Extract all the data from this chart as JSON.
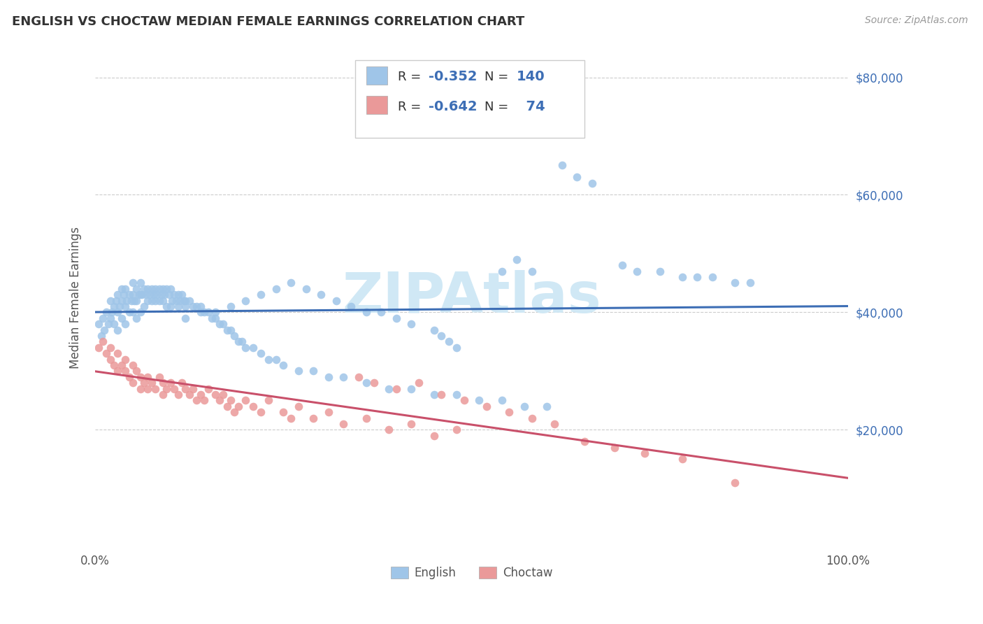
{
  "title": "ENGLISH VS CHOCTAW MEDIAN FEMALE EARNINGS CORRELATION CHART",
  "source": "Source: ZipAtlas.com",
  "ylabel": "Median Female Earnings",
  "xlim": [
    0,
    1
  ],
  "ylim": [
    0,
    85000
  ],
  "english_color": "#9fc5e8",
  "choctaw_color": "#ea9999",
  "english_line_color": "#3d6eb5",
  "choctaw_line_color": "#c9506a",
  "R_english": -0.352,
  "N_english": 140,
  "R_choctaw": -0.642,
  "N_choctaw": 74,
  "background_color": "#ffffff",
  "watermark_text": "ZIPAtlas",
  "watermark_color": "#d0e8f5",
  "english_x": [
    0.005,
    0.008,
    0.01,
    0.012,
    0.015,
    0.018,
    0.02,
    0.02,
    0.022,
    0.025,
    0.025,
    0.028,
    0.03,
    0.03,
    0.03,
    0.032,
    0.035,
    0.035,
    0.035,
    0.038,
    0.04,
    0.04,
    0.04,
    0.042,
    0.045,
    0.045,
    0.048,
    0.05,
    0.05,
    0.05,
    0.052,
    0.055,
    0.055,
    0.055,
    0.058,
    0.06,
    0.06,
    0.06,
    0.062,
    0.065,
    0.065,
    0.068,
    0.07,
    0.07,
    0.072,
    0.075,
    0.075,
    0.078,
    0.08,
    0.08,
    0.082,
    0.085,
    0.085,
    0.088,
    0.09,
    0.09,
    0.092,
    0.095,
    0.095,
    0.098,
    0.1,
    0.1,
    0.102,
    0.105,
    0.108,
    0.11,
    0.11,
    0.112,
    0.115,
    0.118,
    0.12,
    0.12,
    0.125,
    0.13,
    0.135,
    0.14,
    0.145,
    0.15,
    0.155,
    0.16,
    0.165,
    0.17,
    0.175,
    0.18,
    0.185,
    0.19,
    0.195,
    0.2,
    0.21,
    0.22,
    0.23,
    0.24,
    0.25,
    0.27,
    0.29,
    0.31,
    0.33,
    0.36,
    0.39,
    0.42,
    0.45,
    0.48,
    0.51,
    0.54,
    0.57,
    0.6,
    0.54,
    0.56,
    0.58,
    0.62,
    0.64,
    0.66,
    0.7,
    0.72,
    0.75,
    0.78,
    0.8,
    0.82,
    0.85,
    0.87,
    0.45,
    0.46,
    0.47,
    0.48,
    0.42,
    0.4,
    0.38,
    0.36,
    0.34,
    0.32,
    0.3,
    0.28,
    0.26,
    0.24,
    0.22,
    0.2,
    0.18,
    0.16,
    0.14,
    0.12
  ],
  "english_y": [
    38000,
    36000,
    39000,
    37000,
    40000,
    38000,
    42000,
    39000,
    40000,
    41000,
    38000,
    42000,
    43000,
    40000,
    37000,
    41000,
    44000,
    42000,
    39000,
    43000,
    44000,
    41000,
    38000,
    42000,
    43000,
    40000,
    42000,
    45000,
    43000,
    40000,
    42000,
    44000,
    42000,
    39000,
    43000,
    45000,
    43000,
    40000,
    43000,
    44000,
    41000,
    43000,
    44000,
    42000,
    43000,
    44000,
    42000,
    43000,
    44000,
    42000,
    43000,
    44000,
    42000,
    43000,
    44000,
    42000,
    43000,
    44000,
    41000,
    43000,
    44000,
    41000,
    42000,
    43000,
    42000,
    43000,
    41000,
    42000,
    43000,
    42000,
    42000,
    41000,
    42000,
    41000,
    41000,
    41000,
    40000,
    40000,
    39000,
    39000,
    38000,
    38000,
    37000,
    37000,
    36000,
    35000,
    35000,
    34000,
    34000,
    33000,
    32000,
    32000,
    31000,
    30000,
    30000,
    29000,
    29000,
    28000,
    27000,
    27000,
    26000,
    26000,
    25000,
    25000,
    24000,
    24000,
    47000,
    49000,
    47000,
    65000,
    63000,
    62000,
    48000,
    47000,
    47000,
    46000,
    46000,
    46000,
    45000,
    45000,
    37000,
    36000,
    35000,
    34000,
    38000,
    39000,
    40000,
    40000,
    41000,
    42000,
    43000,
    44000,
    45000,
    44000,
    43000,
    42000,
    41000,
    40000,
    40000,
    39000
  ],
  "choctaw_x": [
    0.005,
    0.01,
    0.015,
    0.02,
    0.02,
    0.025,
    0.03,
    0.03,
    0.035,
    0.04,
    0.04,
    0.045,
    0.05,
    0.05,
    0.055,
    0.06,
    0.06,
    0.065,
    0.07,
    0.07,
    0.075,
    0.08,
    0.085,
    0.09,
    0.09,
    0.095,
    0.1,
    0.105,
    0.11,
    0.115,
    0.12,
    0.125,
    0.13,
    0.135,
    0.14,
    0.145,
    0.15,
    0.16,
    0.165,
    0.17,
    0.175,
    0.18,
    0.185,
    0.19,
    0.2,
    0.21,
    0.22,
    0.23,
    0.25,
    0.26,
    0.27,
    0.29,
    0.31,
    0.33,
    0.36,
    0.39,
    0.42,
    0.45,
    0.48,
    0.35,
    0.37,
    0.4,
    0.43,
    0.46,
    0.49,
    0.52,
    0.55,
    0.58,
    0.61,
    0.65,
    0.69,
    0.73,
    0.78,
    0.85
  ],
  "choctaw_y": [
    34000,
    35000,
    33000,
    34000,
    32000,
    31000,
    33000,
    30000,
    31000,
    30000,
    32000,
    29000,
    31000,
    28000,
    30000,
    29000,
    27000,
    28000,
    27000,
    29000,
    28000,
    27000,
    29000,
    28000,
    26000,
    27000,
    28000,
    27000,
    26000,
    28000,
    27000,
    26000,
    27000,
    25000,
    26000,
    25000,
    27000,
    26000,
    25000,
    26000,
    24000,
    25000,
    23000,
    24000,
    25000,
    24000,
    23000,
    25000,
    23000,
    22000,
    24000,
    22000,
    23000,
    21000,
    22000,
    20000,
    21000,
    19000,
    20000,
    29000,
    28000,
    27000,
    28000,
    26000,
    25000,
    24000,
    23000,
    22000,
    21000,
    18000,
    17000,
    16000,
    15000,
    11000
  ]
}
